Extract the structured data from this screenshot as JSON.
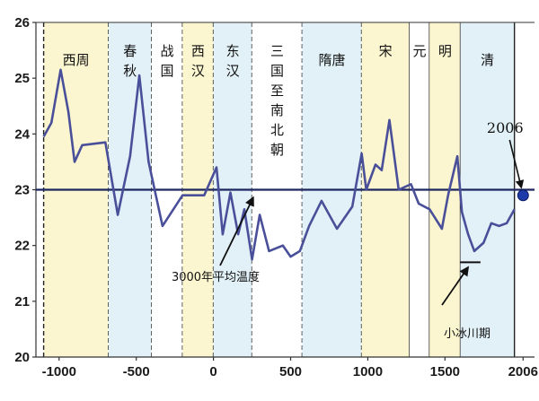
{
  "colors": {
    "line": "#4a4f9a",
    "baseline": "#1e2660",
    "point_2006": "#1e3aa8",
    "band_yellow": "#fbf6cf",
    "band_blue": "#e2f1f7",
    "band_white": "#ffffff",
    "band_dash": "#222222"
  },
  "chart_data": {
    "type": "line",
    "title": "",
    "xlabel": "",
    "ylabel": "",
    "xlim": [
      -1150,
      2080
    ],
    "ylim": [
      20,
      26
    ],
    "grid": false,
    "x_ticks": [
      {
        "v": -1000,
        "label": "-1000"
      },
      {
        "v": -500,
        "label": "-500"
      },
      {
        "v": 0,
        "label": "0"
      },
      {
        "v": 500,
        "label": "500"
      },
      {
        "v": 1000,
        "label": "1000"
      },
      {
        "v": 1500,
        "label": "1500"
      },
      {
        "v": 2006,
        "label": "2006"
      }
    ],
    "y_ticks": [
      20,
      21,
      22,
      23,
      24,
      25,
      26
    ],
    "baseline": {
      "y": 23,
      "label": "3000年平均温度"
    },
    "eras": [
      {
        "label": "西周",
        "start": -1100,
        "end": -680,
        "color": "yellow",
        "dash": "dashed"
      },
      {
        "label": "春秋",
        "start": -680,
        "end": -400,
        "color": "blue",
        "dash": "dashed"
      },
      {
        "label": "战国",
        "start": -400,
        "end": -200,
        "color": "white",
        "dash": "dashed"
      },
      {
        "label": "西汉",
        "start": -200,
        "end": 0,
        "color": "yellow",
        "dash": "dashed"
      },
      {
        "label": "东汉",
        "start": 0,
        "end": 250,
        "color": "blue",
        "dash": "dashed"
      },
      {
        "label": "三国至南北朝",
        "start": 250,
        "end": 575,
        "color": "white",
        "dash": "dashed"
      },
      {
        "label": "隋唐",
        "start": 575,
        "end": 960,
        "color": "blue",
        "dash": "dashed"
      },
      {
        "label": "宋",
        "start": 960,
        "end": 1270,
        "color": "yellow",
        "dash": "solid"
      },
      {
        "label": "元",
        "start": 1270,
        "end": 1400,
        "color": "white",
        "dash": "solid"
      },
      {
        "label": "明",
        "start": 1400,
        "end": 1600,
        "color": "yellow",
        "dash": "solid"
      },
      {
        "label": "清",
        "start": 1600,
        "end": 1950,
        "color": "blue",
        "dash": "solid"
      }
    ],
    "series": [
      {
        "x": [
          -1100,
          -1050,
          -990,
          -940,
          -900,
          -850,
          -700,
          -620,
          -540,
          -480,
          -420,
          -330,
          -200,
          -130,
          -60,
          20,
          60,
          110,
          160,
          200,
          250,
          300,
          360,
          450,
          500,
          560,
          620,
          700,
          800,
          900,
          960,
          990,
          1050,
          1090,
          1140,
          1200,
          1280,
          1330,
          1400,
          1480,
          1520,
          1580,
          1610,
          1650,
          1690,
          1750,
          1800,
          1850,
          1900,
          1950
        ],
        "y": [
          23.95,
          24.2,
          25.15,
          24.4,
          23.5,
          23.8,
          23.85,
          22.55,
          23.6,
          25.05,
          23.5,
          22.35,
          22.9,
          22.9,
          22.9,
          23.4,
          22.2,
          22.95,
          22.2,
          22.65,
          21.75,
          22.55,
          21.9,
          22.0,
          21.8,
          21.9,
          22.35,
          22.8,
          22.3,
          22.7,
          23.65,
          23.0,
          23.45,
          23.35,
          24.25,
          23.0,
          23.1,
          22.75,
          22.65,
          22.3,
          22.9,
          23.6,
          22.6,
          22.2,
          21.9,
          22.05,
          22.4,
          22.35,
          22.4,
          22.65
        ]
      }
    ],
    "points": [
      {
        "x": 2006,
        "y": 22.9,
        "label": "2006"
      }
    ],
    "annotations": [
      {
        "label": "3000年平均温度",
        "target_x": 280,
        "target_y": 22.95
      },
      {
        "label": "小冰川期",
        "target_x": 1660,
        "target_y": 21.7
      }
    ],
    "little_ice_age_marker": {
      "x_start": 1600,
      "x_end": 1730,
      "y": 21.7
    }
  }
}
